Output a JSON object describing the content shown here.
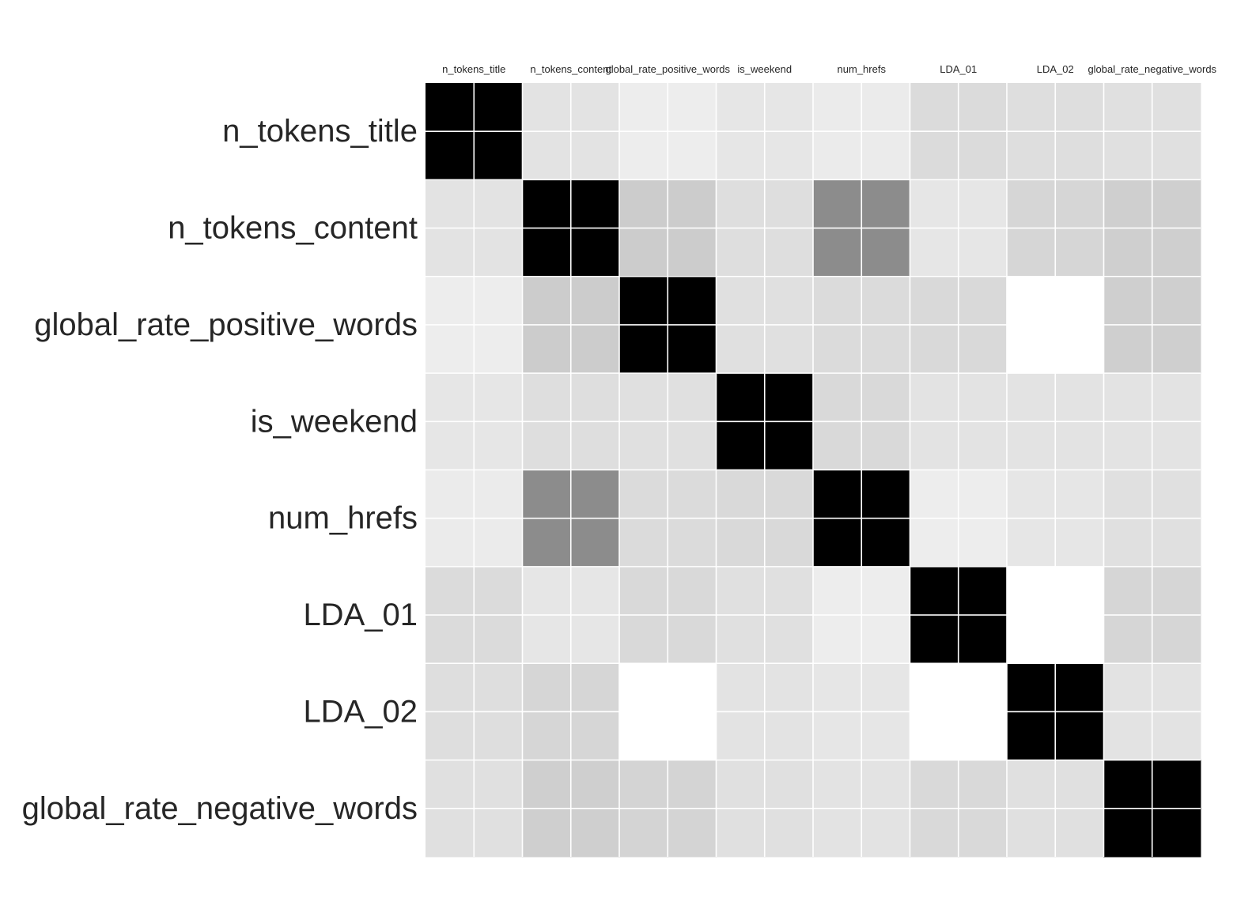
{
  "chart_data": {
    "type": "heatmap",
    "title": "",
    "xlabel": "",
    "ylabel": "",
    "variables": [
      "n_tokens_title",
      "n_tokens_content",
      "global_rate_positive_words",
      "is_weekend",
      "num_hrefs",
      "LDA_01",
      "LDA_02",
      "global_rate_negative_words"
    ],
    "matrix": [
      [
        1.0,
        0.11,
        0.07,
        0.1,
        0.08,
        0.14,
        0.13,
        0.12
      ],
      [
        0.11,
        1.0,
        0.2,
        0.13,
        0.45,
        0.1,
        0.16,
        0.19
      ],
      [
        0.07,
        0.2,
        1.0,
        0.12,
        0.14,
        0.15,
        0.0,
        0.19
      ],
      [
        0.1,
        0.13,
        0.12,
        1.0,
        0.15,
        0.11,
        0.11,
        0.11
      ],
      [
        0.08,
        0.45,
        0.14,
        0.15,
        1.0,
        0.07,
        0.1,
        0.12
      ],
      [
        0.14,
        0.1,
        0.15,
        0.12,
        0.07,
        1.0,
        0.0,
        0.16
      ],
      [
        0.13,
        0.16,
        0.0,
        0.11,
        0.1,
        0.0,
        1.0,
        0.11
      ],
      [
        0.12,
        0.19,
        0.17,
        0.12,
        0.11,
        0.15,
        0.12,
        1.0
      ]
    ],
    "color_scale": {
      "low": "#ffffff",
      "high": "#000000"
    },
    "grid": true,
    "legend": "none"
  }
}
